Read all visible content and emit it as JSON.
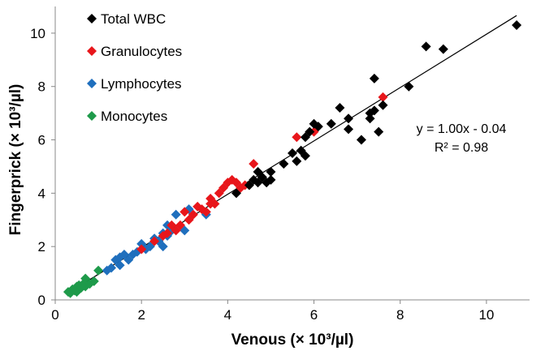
{
  "chart_data": {
    "type": "scatter",
    "title": "",
    "xlabel": "Venous (× 10³/µl)",
    "ylabel": "Fingerprick  (× 10³/µl)",
    "xlim": [
      0,
      11
    ],
    "ylim": [
      0,
      11
    ],
    "xticks": [
      "0",
      "2",
      "4",
      "6",
      "8",
      "10"
    ],
    "yticks": [
      "0",
      "2",
      "4",
      "6",
      "8",
      "10"
    ],
    "grid": false,
    "legend_position": "top-left",
    "trendline": {
      "slope": 1.0,
      "intercept": -0.04,
      "x_range": [
        0.3,
        10.7
      ]
    },
    "equation": "y = 1.00x - 0.04",
    "r_squared": "R² = 0.98",
    "series": [
      {
        "name": "Total WBC",
        "color": "#000000",
        "points": [
          [
            4.2,
            4.0
          ],
          [
            4.5,
            4.3
          ],
          [
            4.6,
            4.5
          ],
          [
            4.7,
            4.4
          ],
          [
            4.8,
            4.6
          ],
          [
            4.9,
            4.4
          ],
          [
            5.0,
            4.5
          ],
          [
            5.0,
            4.8
          ],
          [
            4.7,
            4.8
          ],
          [
            5.3,
            5.1
          ],
          [
            5.5,
            5.5
          ],
          [
            5.6,
            5.2
          ],
          [
            5.7,
            5.6
          ],
          [
            5.8,
            5.4
          ],
          [
            5.8,
            6.1
          ],
          [
            5.9,
            6.3
          ],
          [
            6.0,
            6.6
          ],
          [
            6.1,
            6.5
          ],
          [
            6.4,
            6.6
          ],
          [
            6.6,
            7.2
          ],
          [
            6.8,
            6.4
          ],
          [
            6.8,
            6.8
          ],
          [
            7.1,
            6.0
          ],
          [
            7.3,
            6.8
          ],
          [
            7.3,
            7.0
          ],
          [
            7.4,
            7.1
          ],
          [
            7.4,
            8.3
          ],
          [
            7.5,
            6.3
          ],
          [
            7.6,
            7.3
          ],
          [
            8.2,
            8.0
          ],
          [
            8.6,
            9.5
          ],
          [
            9.0,
            9.4
          ],
          [
            10.7,
            10.3
          ]
        ]
      },
      {
        "name": "Granulocytes",
        "color": "#e8161b",
        "points": [
          [
            2.0,
            1.9
          ],
          [
            2.3,
            2.2
          ],
          [
            2.5,
            2.4
          ],
          [
            2.6,
            2.5
          ],
          [
            2.7,
            2.8
          ],
          [
            2.8,
            2.6
          ],
          [
            2.9,
            2.8
          ],
          [
            3.0,
            3.3
          ],
          [
            3.1,
            3.0
          ],
          [
            3.2,
            3.2
          ],
          [
            3.3,
            3.5
          ],
          [
            3.4,
            3.4
          ],
          [
            3.5,
            3.3
          ],
          [
            3.6,
            3.6
          ],
          [
            3.6,
            3.8
          ],
          [
            3.7,
            3.6
          ],
          [
            3.8,
            4.0
          ],
          [
            3.9,
            4.2
          ],
          [
            4.0,
            4.4
          ],
          [
            4.1,
            4.5
          ],
          [
            4.2,
            4.4
          ],
          [
            4.3,
            4.2
          ],
          [
            4.4,
            4.3
          ],
          [
            4.6,
            5.1
          ],
          [
            5.6,
            6.1
          ],
          [
            6.0,
            6.3
          ],
          [
            7.6,
            7.6
          ]
        ]
      },
      {
        "name": "Lymphocytes",
        "color": "#1f6fbd",
        "points": [
          [
            1.2,
            1.1
          ],
          [
            1.3,
            1.2
          ],
          [
            1.4,
            1.5
          ],
          [
            1.5,
            1.6
          ],
          [
            1.5,
            1.3
          ],
          [
            1.6,
            1.7
          ],
          [
            1.7,
            1.5
          ],
          [
            1.8,
            1.7
          ],
          [
            1.9,
            1.8
          ],
          [
            2.0,
            2.1
          ],
          [
            2.1,
            1.9
          ],
          [
            2.2,
            2.0
          ],
          [
            2.3,
            2.3
          ],
          [
            2.4,
            2.2
          ],
          [
            2.5,
            2.5
          ],
          [
            2.5,
            2.0
          ],
          [
            2.6,
            2.8
          ],
          [
            2.6,
            2.4
          ],
          [
            2.7,
            2.6
          ],
          [
            2.8,
            3.2
          ],
          [
            3.0,
            2.6
          ],
          [
            3.1,
            3.4
          ],
          [
            3.5,
            3.2
          ]
        ]
      },
      {
        "name": "Monocytes",
        "color": "#1e9a4a",
        "points": [
          [
            0.3,
            0.3
          ],
          [
            0.35,
            0.25
          ],
          [
            0.4,
            0.4
          ],
          [
            0.45,
            0.35
          ],
          [
            0.5,
            0.5
          ],
          [
            0.5,
            0.3
          ],
          [
            0.55,
            0.55
          ],
          [
            0.6,
            0.45
          ],
          [
            0.65,
            0.6
          ],
          [
            0.7,
            0.8
          ],
          [
            0.7,
            0.5
          ],
          [
            0.8,
            0.6
          ],
          [
            0.9,
            0.7
          ],
          [
            1.0,
            1.1
          ]
        ]
      }
    ]
  }
}
